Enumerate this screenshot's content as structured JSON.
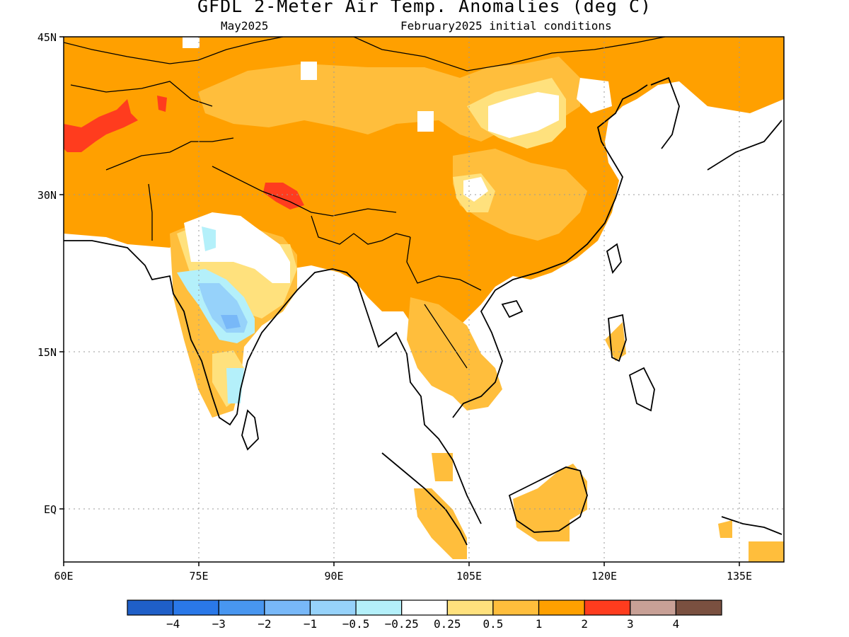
{
  "title": "GFDL 2-Meter Air Temp. Anomalies (deg C)",
  "subtitle_left": "May2025",
  "subtitle_right": "February2025 initial conditions",
  "map": {
    "lon_range": [
      60,
      140
    ],
    "lat_range": [
      -6,
      45
    ],
    "lon_ticks": [
      {
        "lon": 60,
        "label": "60E"
      },
      {
        "lon": 75,
        "label": "75E"
      },
      {
        "lon": 90,
        "label": "90E"
      },
      {
        "lon": 105,
        "label": "105E"
      },
      {
        "lon": 120,
        "label": "120E"
      },
      {
        "lon": 135,
        "label": "135E"
      }
    ],
    "lat_ticks": [
      {
        "lat": 45,
        "label": "45N"
      },
      {
        "lat": 30,
        "label": "30N"
      },
      {
        "lat": 15,
        "label": "15N"
      },
      {
        "lat": 0,
        "label": "EQ"
      }
    ],
    "grid": "dotted"
  },
  "colorbar": {
    "colors": [
      "#1f5fc8",
      "#2a78e8",
      "#4896f0",
      "#78b8f8",
      "#96d2fa",
      "#b4f0fa",
      "#ffffff",
      "#ffe17d",
      "#ffbe3c",
      "#ffa000",
      "#ff3c1e",
      "#c8a096",
      "#7a5040"
    ],
    "labels": [
      "-4",
      "-3",
      "-2",
      "-1",
      "-0.5",
      "-0.25",
      "0.25",
      "0.5",
      "1",
      "2",
      "3",
      "4"
    ]
  }
}
